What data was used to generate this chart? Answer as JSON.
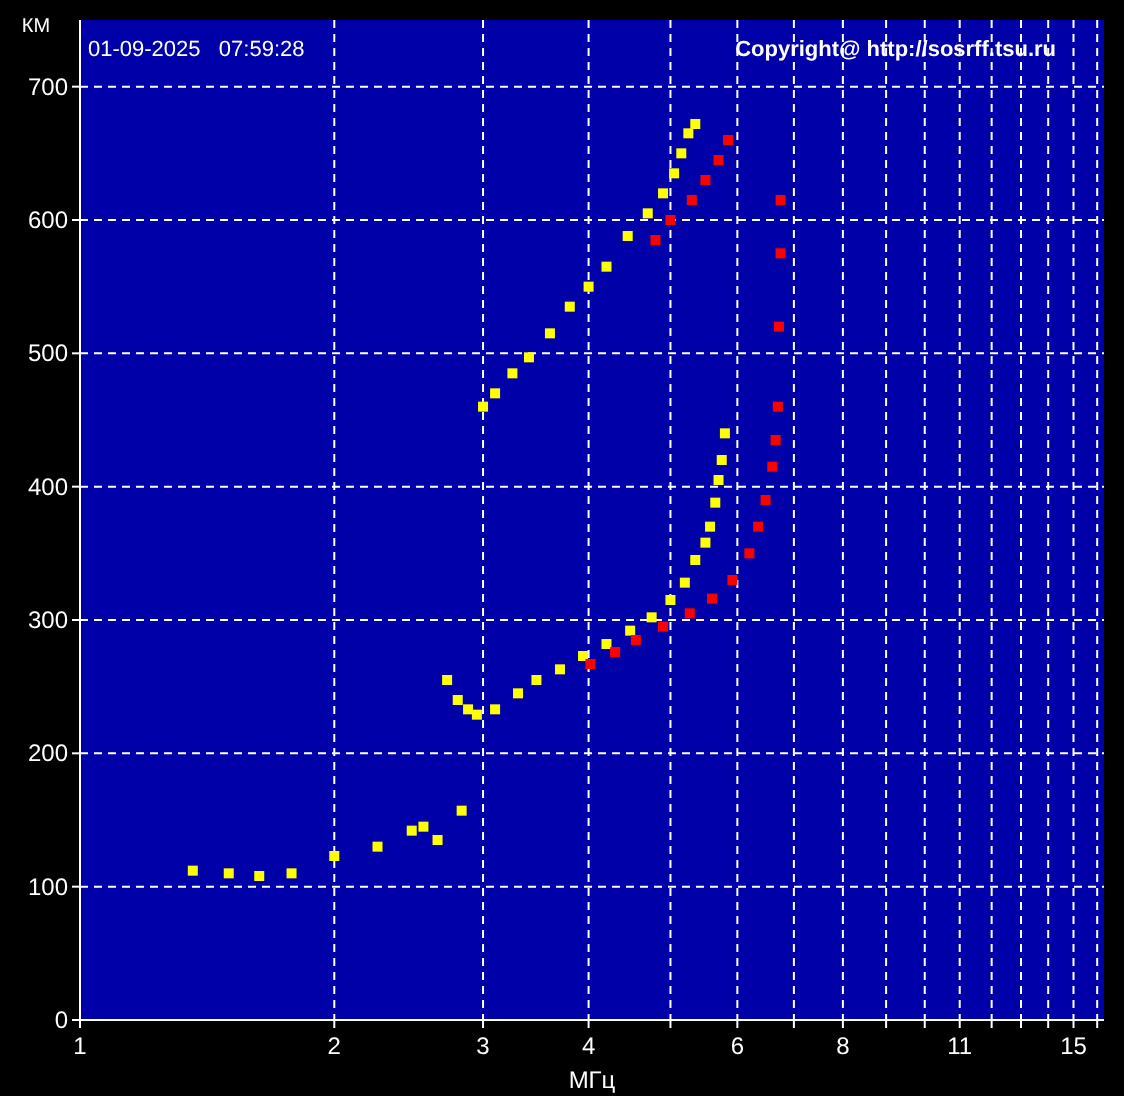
{
  "chart_data": {
    "type": "scatter",
    "title": "01-09-2025   07:59:28",
    "xlabel": "МГц",
    "ylabel": "КМ",
    "annotations": [
      "Copyright@ http://sosrff.tsu.ru"
    ],
    "log": "x",
    "grid": true,
    "marker": "square",
    "xlim": [
      1,
      16.3
    ],
    "ylim": [
      0,
      750
    ],
    "xticks": [
      1,
      2,
      3,
      4,
      {
        "value": 5,
        "label": null
      },
      6,
      {
        "value": 7,
        "label": null
      },
      8,
      {
        "value": 9,
        "label": null
      },
      {
        "value": 10,
        "label": null
      },
      11,
      {
        "value": 12,
        "label": null
      },
      {
        "value": 13,
        "label": null
      },
      {
        "value": 14,
        "label": null
      },
      15,
      {
        "value": 16,
        "label": null
      }
    ],
    "yticks": [
      0,
      100,
      200,
      300,
      400,
      500,
      600,
      700
    ],
    "series": [
      {
        "color": "#ffff00",
        "x": [
          3.0,
          3.1,
          3.25,
          3.4,
          3.6,
          3.8,
          4.0,
          4.2,
          4.45,
          4.7,
          4.9,
          5.05,
          5.15,
          5.25,
          5.35
        ],
        "values": [
          460,
          470,
          485,
          497,
          515,
          535,
          550,
          565,
          588,
          605,
          620,
          635,
          650,
          665,
          672
        ]
      },
      {
        "color": "#ff0000",
        "x": [
          4.8,
          5.0,
          5.3,
          5.5,
          5.7,
          5.85
        ],
        "values": [
          585,
          600,
          615,
          630,
          645,
          660
        ]
      },
      {
        "color": "#ffff00",
        "x": [
          2.72,
          2.8,
          2.88,
          2.95,
          3.1,
          3.3,
          3.47,
          3.7,
          3.94,
          4.2,
          4.48,
          4.75,
          5.0,
          5.2,
          5.35,
          5.5,
          5.57,
          5.65,
          5.7,
          5.75,
          5.8
        ],
        "values": [
          255,
          240,
          233,
          229,
          233,
          245,
          255,
          263,
          273,
          282,
          292,
          302,
          315,
          328,
          345,
          358,
          370,
          388,
          405,
          420,
          440
        ]
      },
      {
        "color": "#ff0000",
        "x": [
          4.02,
          4.3,
          4.55,
          4.9,
          5.27,
          5.6,
          5.92,
          6.2,
          6.35,
          6.48,
          6.6,
          6.66,
          6.7,
          6.72,
          6.75,
          6.75
        ],
        "values": [
          267,
          276,
          285,
          295,
          305,
          316,
          330,
          350,
          370,
          390,
          415,
          435,
          460,
          520,
          575,
          615
        ]
      },
      {
        "color": "#ffff00",
        "x": [
          1.36,
          1.5,
          1.63,
          1.78,
          2.0,
          2.25,
          2.47,
          2.55,
          2.65,
          2.83
        ],
        "values": [
          112,
          110,
          108,
          110,
          123,
          130,
          142,
          145,
          135,
          157
        ]
      }
    ]
  }
}
